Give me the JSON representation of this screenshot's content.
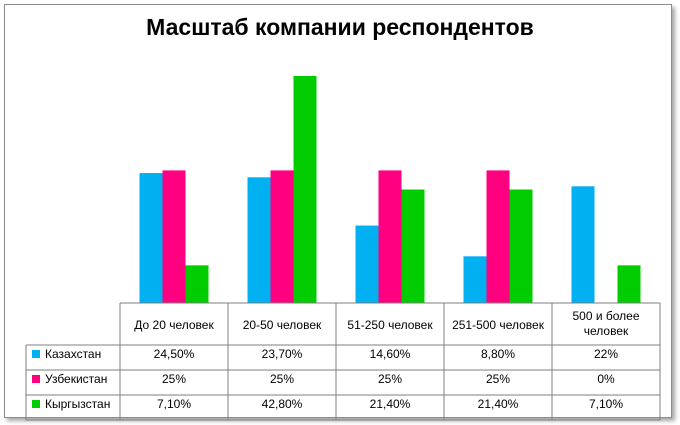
{
  "chart_data": {
    "type": "bar",
    "title": "Масштаб компании респондентов",
    "categories": [
      "До 20 человек",
      "20-50 человек",
      "51-250 человек",
      "251-500 человек",
      "500 и более человек"
    ],
    "series": [
      {
        "name": "Казахстан",
        "color": "#00b0f0",
        "values": [
          24.5,
          23.7,
          14.6,
          8.8,
          22
        ],
        "labels": [
          "24,50%",
          "23,70%",
          "14,60%",
          "8,80%",
          "22%"
        ]
      },
      {
        "name": "Узбекистан",
        "color": "#ff0080",
        "values": [
          25,
          25,
          25,
          25,
          0
        ],
        "labels": [
          "25%",
          "25%",
          "25%",
          "25%",
          "0%"
        ]
      },
      {
        "name": "Кыргызстан",
        "color": "#00cc00",
        "values": [
          7.1,
          42.8,
          21.4,
          21.4,
          7.1
        ],
        "labels": [
          "7,10%",
          "42,80%",
          "21,40%",
          "21,40%",
          "7,10%"
        ]
      }
    ],
    "ylim": [
      0,
      45
    ],
    "grid": false,
    "legend": "data-table"
  }
}
